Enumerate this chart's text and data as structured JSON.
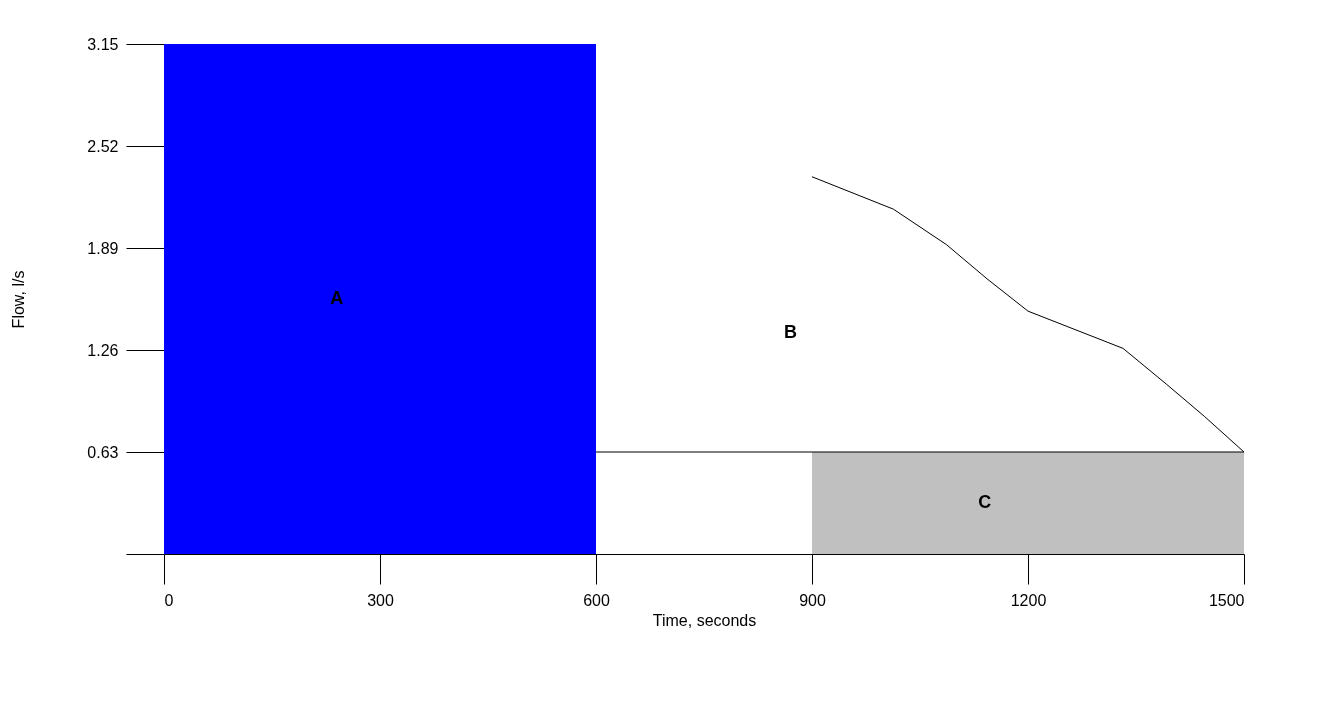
{
  "chart_data": {
    "type": "line",
    "xlabel": "Time, seconds",
    "ylabel": "Flow, l/s",
    "xlim": [
      0,
      1500
    ],
    "xticks": [
      0,
      300,
      600,
      900,
      1200,
      1500
    ],
    "ylim": [
      0,
      3.15
    ],
    "yticks": [
      {
        "value": 0,
        "label": null
      },
      0.63,
      1.26,
      1.89,
      2.52,
      3.15
    ],
    "series": [
      {
        "type": "area",
        "color": "#0000ff",
        "x": [
          0,
          600
        ],
        "values": [
          3.15,
          3.15
        ]
      },
      {
        "color": "#000000",
        "x": [
          900,
          1013,
          1087,
          1143,
          1200,
          1332,
          1392,
          1445,
          1500
        ],
        "values": [
          2.33,
          2.13,
          1.91,
          1.7,
          1.5,
          1.27,
          1.05,
          0.85,
          0.63
        ]
      },
      {
        "type": "area",
        "color": "#c0c0c0",
        "x": [
          900,
          1500
        ],
        "values": [
          0.63,
          0.63
        ]
      },
      {
        "color": "#000000",
        "x": [
          600,
          1500
        ],
        "values": [
          0.63,
          0.63
        ]
      }
    ],
    "annotations": [
      "A",
      "B",
      "C"
    ],
    "grid": false
  }
}
